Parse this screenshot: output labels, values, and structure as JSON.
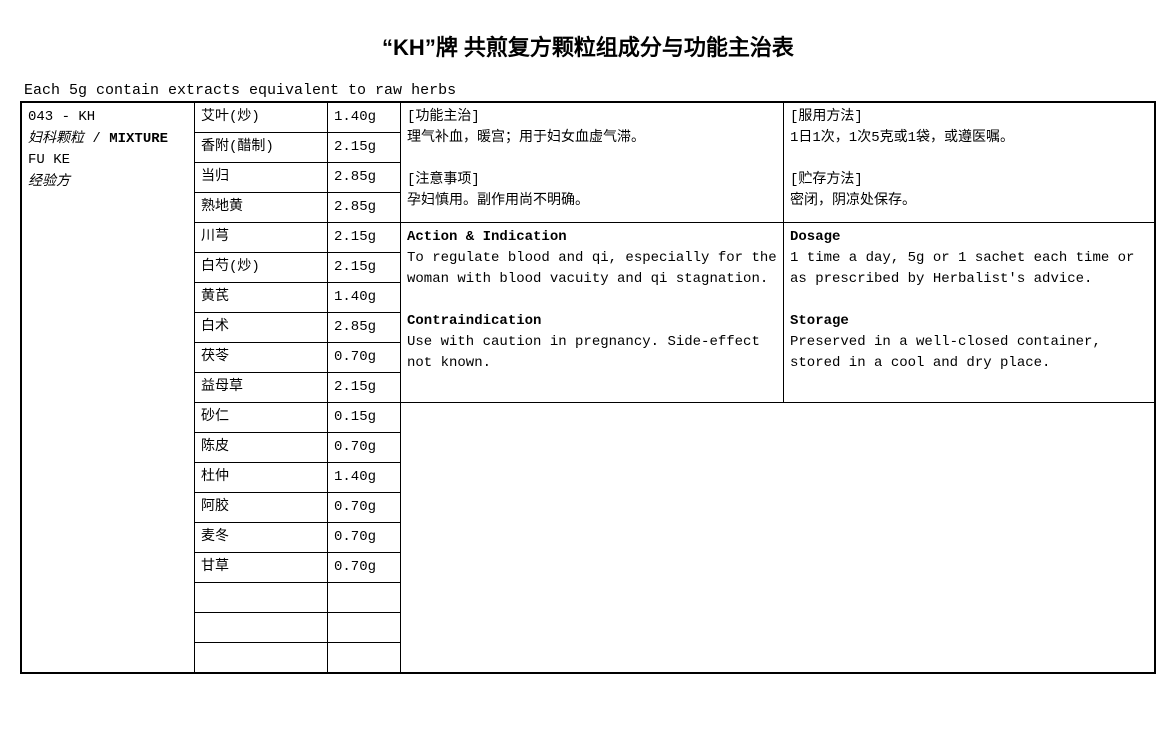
{
  "title": "“KH”牌 共煎复方颗粒组成分与功能主治表",
  "subtitle": "Each 5g contain extracts equivalent to raw herbs",
  "product": {
    "code": "043 - KH",
    "name_cn": "妇科颗粒",
    "mixture": "MIXTURE",
    "name_py": "FU KE",
    "source": "经验方"
  },
  "herbs": [
    {
      "name": "艾叶(炒)",
      "amount": "1.40g"
    },
    {
      "name": "香附(醋制)",
      "amount": "2.15g"
    },
    {
      "name": "当归",
      "amount": "2.85g"
    },
    {
      "name": "熟地黄",
      "amount": "2.85g"
    },
    {
      "name": "川芎",
      "amount": "2.15g"
    },
    {
      "name": "白芍(炒)",
      "amount": "2.15g"
    },
    {
      "name": "黄芪",
      "amount": "1.40g"
    },
    {
      "name": "白术",
      "amount": "2.85g"
    },
    {
      "name": "茯苓",
      "amount": "0.70g"
    },
    {
      "name": "益母草",
      "amount": "2.15g"
    },
    {
      "name": "砂仁",
      "amount": "0.15g"
    },
    {
      "name": "陈皮",
      "amount": "0.70g"
    },
    {
      "name": "杜仲",
      "amount": "1.40g"
    },
    {
      "name": "阿胶",
      "amount": "0.70g"
    },
    {
      "name": "麦冬",
      "amount": "0.70g"
    },
    {
      "name": "甘草",
      "amount": "0.70g"
    },
    {
      "name": "",
      "amount": ""
    },
    {
      "name": "",
      "amount": ""
    },
    {
      "name": "",
      "amount": ""
    }
  ],
  "cn": {
    "action_head": "[功能主治]",
    "action_text": "理气补血，暖宫；用于妇女血虚气滞。",
    "caution_head": "[注意事项]",
    "caution_text": "孕妇慎用。副作用尚不明确。",
    "dosage_head": "[服用方法]",
    "dosage_text": "1日1次，1次5克或1袋，或遵医嘱。",
    "storage_head": "[贮存方法]",
    "storage_text": "密闭，阴凉处保存。"
  },
  "en": {
    "action_head": "Action & Indication",
    "action_text": "To regulate blood and qi, especially for the woman with blood vacuity and qi stagnation.",
    "caution_head": "Contraindication",
    "caution_text": "Use with caution in pregnancy. Side-effect not known.",
    "dosage_head": "Dosage",
    "dosage_text": "1 time a day, 5g or 1 sachet each time or as prescribed by Herbalist's advice.",
    "storage_head": "Storage",
    "storage_text": "Preserved in a well-closed container, stored in a cool and dry place."
  },
  "layout": {
    "left_info_rows": 4,
    "right_info_rows": 10,
    "en_block_span": 6
  }
}
